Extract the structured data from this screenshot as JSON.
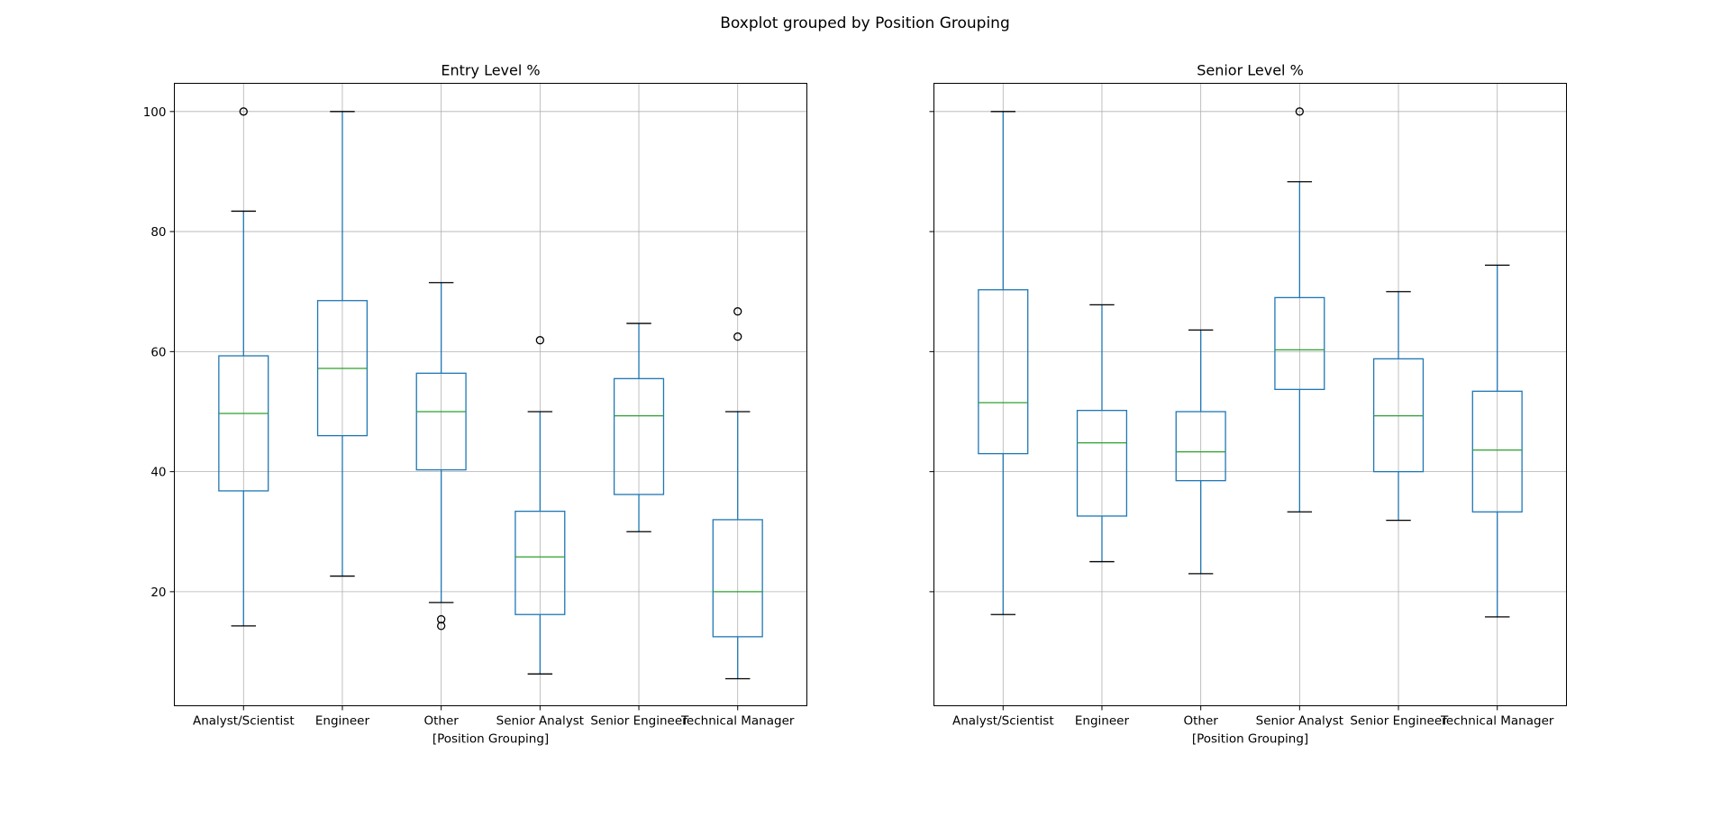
{
  "figure": {
    "suptitle": "Boxplot grouped by Position Grouping",
    "sharey": true
  },
  "chart_data": [
    {
      "type": "boxplot",
      "title": "Entry Level %",
      "xlabel": "[Position Grouping]",
      "ylabel": "",
      "ylim": [
        1,
        104.7
      ],
      "yticks": [
        20,
        40,
        60,
        80,
        100
      ],
      "grid": true,
      "categories": [
        "Analyst/Scientist",
        "Engineer",
        "Other",
        "Senior Analyst",
        "Senior Engineer",
        "Technical Manager"
      ],
      "boxes": [
        {
          "whislo": 14.3,
          "q1": 36.8,
          "med": 49.7,
          "q3": 59.3,
          "whishi": 83.4,
          "fliers": [
            100
          ]
        },
        {
          "whislo": 22.6,
          "q1": 46.0,
          "med": 57.2,
          "q3": 68.5,
          "whishi": 100,
          "fliers": []
        },
        {
          "whislo": 18.2,
          "q1": 40.3,
          "med": 50.0,
          "q3": 56.4,
          "whishi": 71.5,
          "fliers": [
            15.4,
            14.3
          ]
        },
        {
          "whislo": 6.3,
          "q1": 16.2,
          "med": 25.8,
          "q3": 33.4,
          "whishi": 50.0,
          "fliers": [
            61.9
          ]
        },
        {
          "whislo": 30.0,
          "q1": 36.2,
          "med": 49.3,
          "q3": 55.5,
          "whishi": 64.7,
          "fliers": []
        },
        {
          "whislo": 5.5,
          "q1": 12.5,
          "med": 20.0,
          "q3": 32.0,
          "whishi": 50.0,
          "fliers": [
            66.7,
            62.5
          ]
        }
      ],
      "colors": {
        "box": "#1f77b4",
        "median": "#2ca02c",
        "caps": "#000000",
        "grid": "#b0b0b0"
      }
    },
    {
      "type": "boxplot",
      "title": "Senior Level %",
      "xlabel": "[Position Grouping]",
      "ylabel": "",
      "ylim": [
        1,
        104.7
      ],
      "yticks": [
        20,
        40,
        60,
        80,
        100
      ],
      "grid": true,
      "categories": [
        "Analyst/Scientist",
        "Engineer",
        "Other",
        "Senior Analyst",
        "Senior Engineer",
        "Technical Manager"
      ],
      "boxes": [
        {
          "whislo": 16.2,
          "q1": 43.0,
          "med": 51.5,
          "q3": 70.3,
          "whishi": 100,
          "fliers": []
        },
        {
          "whislo": 25.0,
          "q1": 32.6,
          "med": 44.8,
          "q3": 50.2,
          "whishi": 67.8,
          "fliers": []
        },
        {
          "whislo": 23.0,
          "q1": 38.5,
          "med": 43.3,
          "q3": 50.0,
          "whishi": 63.6,
          "fliers": []
        },
        {
          "whislo": 33.3,
          "q1": 53.7,
          "med": 60.3,
          "q3": 69.0,
          "whishi": 88.3,
          "fliers": [
            100
          ]
        },
        {
          "whislo": 31.9,
          "q1": 40.0,
          "med": 49.3,
          "q3": 58.8,
          "whishi": 70.0,
          "fliers": []
        },
        {
          "whislo": 15.8,
          "q1": 33.3,
          "med": 43.6,
          "q3": 53.4,
          "whishi": 74.4,
          "fliers": []
        }
      ],
      "colors": {
        "box": "#1f77b4",
        "median": "#2ca02c",
        "caps": "#000000",
        "grid": "#b0b0b0"
      }
    }
  ]
}
